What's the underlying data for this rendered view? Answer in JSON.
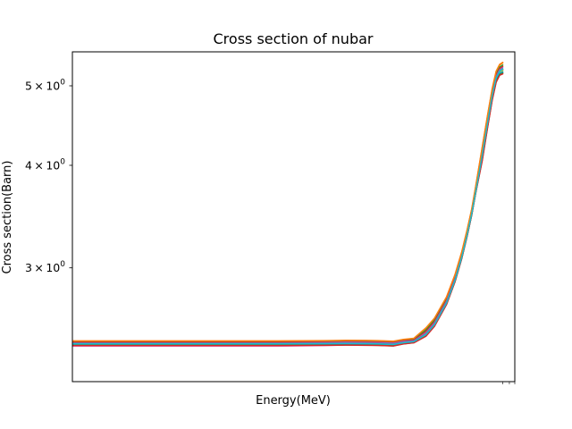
{
  "chart_data": {
    "type": "line",
    "title": "Cross section of nubar",
    "xlabel": "Energy(MeV)",
    "ylabel": "Cross section(Barn)",
    "yscale": "log",
    "ylim": [
      2.18,
      5.5
    ],
    "xscale": "log",
    "xlim": [
      1e-05,
      30.0
    ],
    "grid": false,
    "legend": "none",
    "y_tick_labels": [
      {
        "value": 3,
        "base": "3 × 10",
        "exp": "0"
      },
      {
        "value": 4,
        "base": "4 × 10",
        "exp": "0"
      },
      {
        "value": 5,
        "base": "5 × 10",
        "exp": "0"
      }
    ],
    "x_minor_ticks": [
      20,
      25,
      30
    ],
    "x": [
      1e-05,
      0.0001,
      0.001,
      0.01,
      0.05,
      0.1,
      0.2,
      0.3,
      0.5,
      0.7,
      1.0,
      1.5,
      2.0,
      3.0,
      4.0,
      5.0,
      6.0,
      7.0,
      8.0,
      10.0,
      12.0,
      14.0,
      16.0,
      18.0,
      20.0
    ],
    "series": [
      {
        "color": "#ff7f0e",
        "values": [
          2.442,
          2.442,
          2.442,
          2.442,
          2.444,
          2.446,
          2.445,
          2.444,
          2.44,
          2.452,
          2.46,
          2.53,
          2.6,
          2.76,
          2.94,
          3.13,
          3.33,
          3.53,
          3.76,
          4.2,
          4.6,
          4.95,
          5.2,
          5.3,
          5.33
        ]
      },
      {
        "color": "#2ca02c",
        "values": [
          2.438,
          2.438,
          2.438,
          2.438,
          2.44,
          2.442,
          2.441,
          2.44,
          2.436,
          2.448,
          2.455,
          2.52,
          2.59,
          2.75,
          2.93,
          3.12,
          3.32,
          3.52,
          3.74,
          4.17,
          4.57,
          4.92,
          5.17,
          5.27,
          5.3
        ]
      },
      {
        "color": "#d62728",
        "values": [
          2.434,
          2.434,
          2.434,
          2.434,
          2.436,
          2.438,
          2.437,
          2.436,
          2.432,
          2.444,
          2.45,
          2.51,
          2.58,
          2.74,
          2.92,
          3.11,
          3.31,
          3.51,
          3.73,
          4.15,
          4.55,
          4.9,
          5.15,
          5.25,
          5.28
        ]
      },
      {
        "color": "#9467bd",
        "values": [
          2.43,
          2.43,
          2.43,
          2.43,
          2.432,
          2.434,
          2.433,
          2.432,
          2.428,
          2.44,
          2.445,
          2.5,
          2.57,
          2.73,
          2.91,
          3.1,
          3.3,
          3.5,
          3.72,
          4.13,
          4.53,
          4.88,
          5.13,
          5.23,
          5.26
        ]
      },
      {
        "color": "#8c564b",
        "values": [
          2.426,
          2.426,
          2.426,
          2.426,
          2.426,
          2.427,
          2.426,
          2.425,
          2.421,
          2.432,
          2.44,
          2.49,
          2.56,
          2.72,
          2.9,
          3.09,
          3.29,
          3.49,
          3.71,
          4.11,
          4.51,
          4.86,
          5.11,
          5.21,
          5.24
        ]
      },
      {
        "color": "#e377c2",
        "values": [
          2.408,
          2.408,
          2.408,
          2.408,
          2.412,
          2.416,
          2.418,
          2.416,
          2.412,
          2.426,
          2.435,
          2.48,
          2.55,
          2.71,
          2.89,
          3.08,
          3.28,
          3.48,
          3.7,
          4.09,
          4.49,
          4.84,
          5.09,
          5.19,
          5.22
        ]
      },
      {
        "color": "#7f7f7f",
        "values": [
          2.422,
          2.422,
          2.422,
          2.422,
          2.423,
          2.424,
          2.423,
          2.422,
          2.418,
          2.43,
          2.438,
          2.485,
          2.555,
          2.715,
          2.895,
          3.085,
          3.285,
          3.485,
          3.705,
          4.1,
          4.5,
          4.85,
          5.1,
          5.2,
          5.23
        ]
      },
      {
        "color": "#bcbd22",
        "values": [
          2.418,
          2.418,
          2.418,
          2.418,
          2.419,
          2.42,
          2.419,
          2.418,
          2.414,
          2.428,
          2.436,
          2.482,
          2.552,
          2.712,
          2.892,
          3.082,
          3.282,
          3.482,
          3.702,
          4.09,
          4.49,
          4.84,
          5.09,
          5.19,
          5.22
        ]
      },
      {
        "color": "#17becf",
        "values": [
          2.42,
          2.42,
          2.42,
          2.42,
          2.42,
          2.422,
          2.421,
          2.42,
          2.416,
          2.429,
          2.437,
          2.483,
          2.553,
          2.713,
          2.893,
          3.083,
          3.283,
          3.483,
          3.703,
          4.08,
          4.48,
          4.83,
          5.08,
          5.18,
          5.2
        ]
      },
      {
        "color": "#1f77b4",
        "values": [
          2.416,
          2.416,
          2.416,
          2.416,
          2.417,
          2.418,
          2.417,
          2.416,
          2.412,
          2.426,
          2.434,
          2.48,
          2.55,
          2.71,
          2.89,
          3.08,
          3.28,
          3.48,
          3.7,
          4.07,
          4.47,
          4.82,
          5.07,
          5.17,
          5.19
        ]
      },
      {
        "color": "#2ca02c",
        "values": [
          2.414,
          2.414,
          2.414,
          2.414,
          2.415,
          2.416,
          2.415,
          2.414,
          2.41,
          2.424,
          2.432,
          2.478,
          2.548,
          2.708,
          2.888,
          3.078,
          3.278,
          3.478,
          3.698,
          4.06,
          4.46,
          4.81,
          5.06,
          5.16,
          5.18
        ]
      },
      {
        "color": "#ff7f0e",
        "values": [
          2.444,
          2.444,
          2.444,
          2.444,
          2.446,
          2.448,
          2.447,
          2.446,
          2.442,
          2.454,
          2.462,
          2.535,
          2.605,
          2.765,
          2.945,
          3.135,
          3.335,
          3.535,
          3.765,
          4.21,
          4.61,
          4.96,
          5.21,
          5.31,
          5.34
        ]
      },
      {
        "color": "#d62728",
        "values": [
          2.412,
          2.412,
          2.412,
          2.412,
          2.414,
          2.415,
          2.414,
          2.413,
          2.409,
          2.423,
          2.431,
          2.476,
          2.546,
          2.706,
          2.886,
          3.076,
          3.276,
          3.476,
          3.696,
          4.05,
          4.45,
          4.8,
          5.05,
          5.15,
          5.17
        ]
      },
      {
        "color": "#17becf",
        "values": [
          2.424,
          2.424,
          2.424,
          2.424,
          2.425,
          2.426,
          2.425,
          2.424,
          2.42,
          2.431,
          2.439,
          2.488,
          2.558,
          2.718,
          2.898,
          3.088,
          3.288,
          3.488,
          3.708,
          4.11,
          4.51,
          4.86,
          5.11,
          5.21,
          5.24
        ]
      }
    ]
  }
}
